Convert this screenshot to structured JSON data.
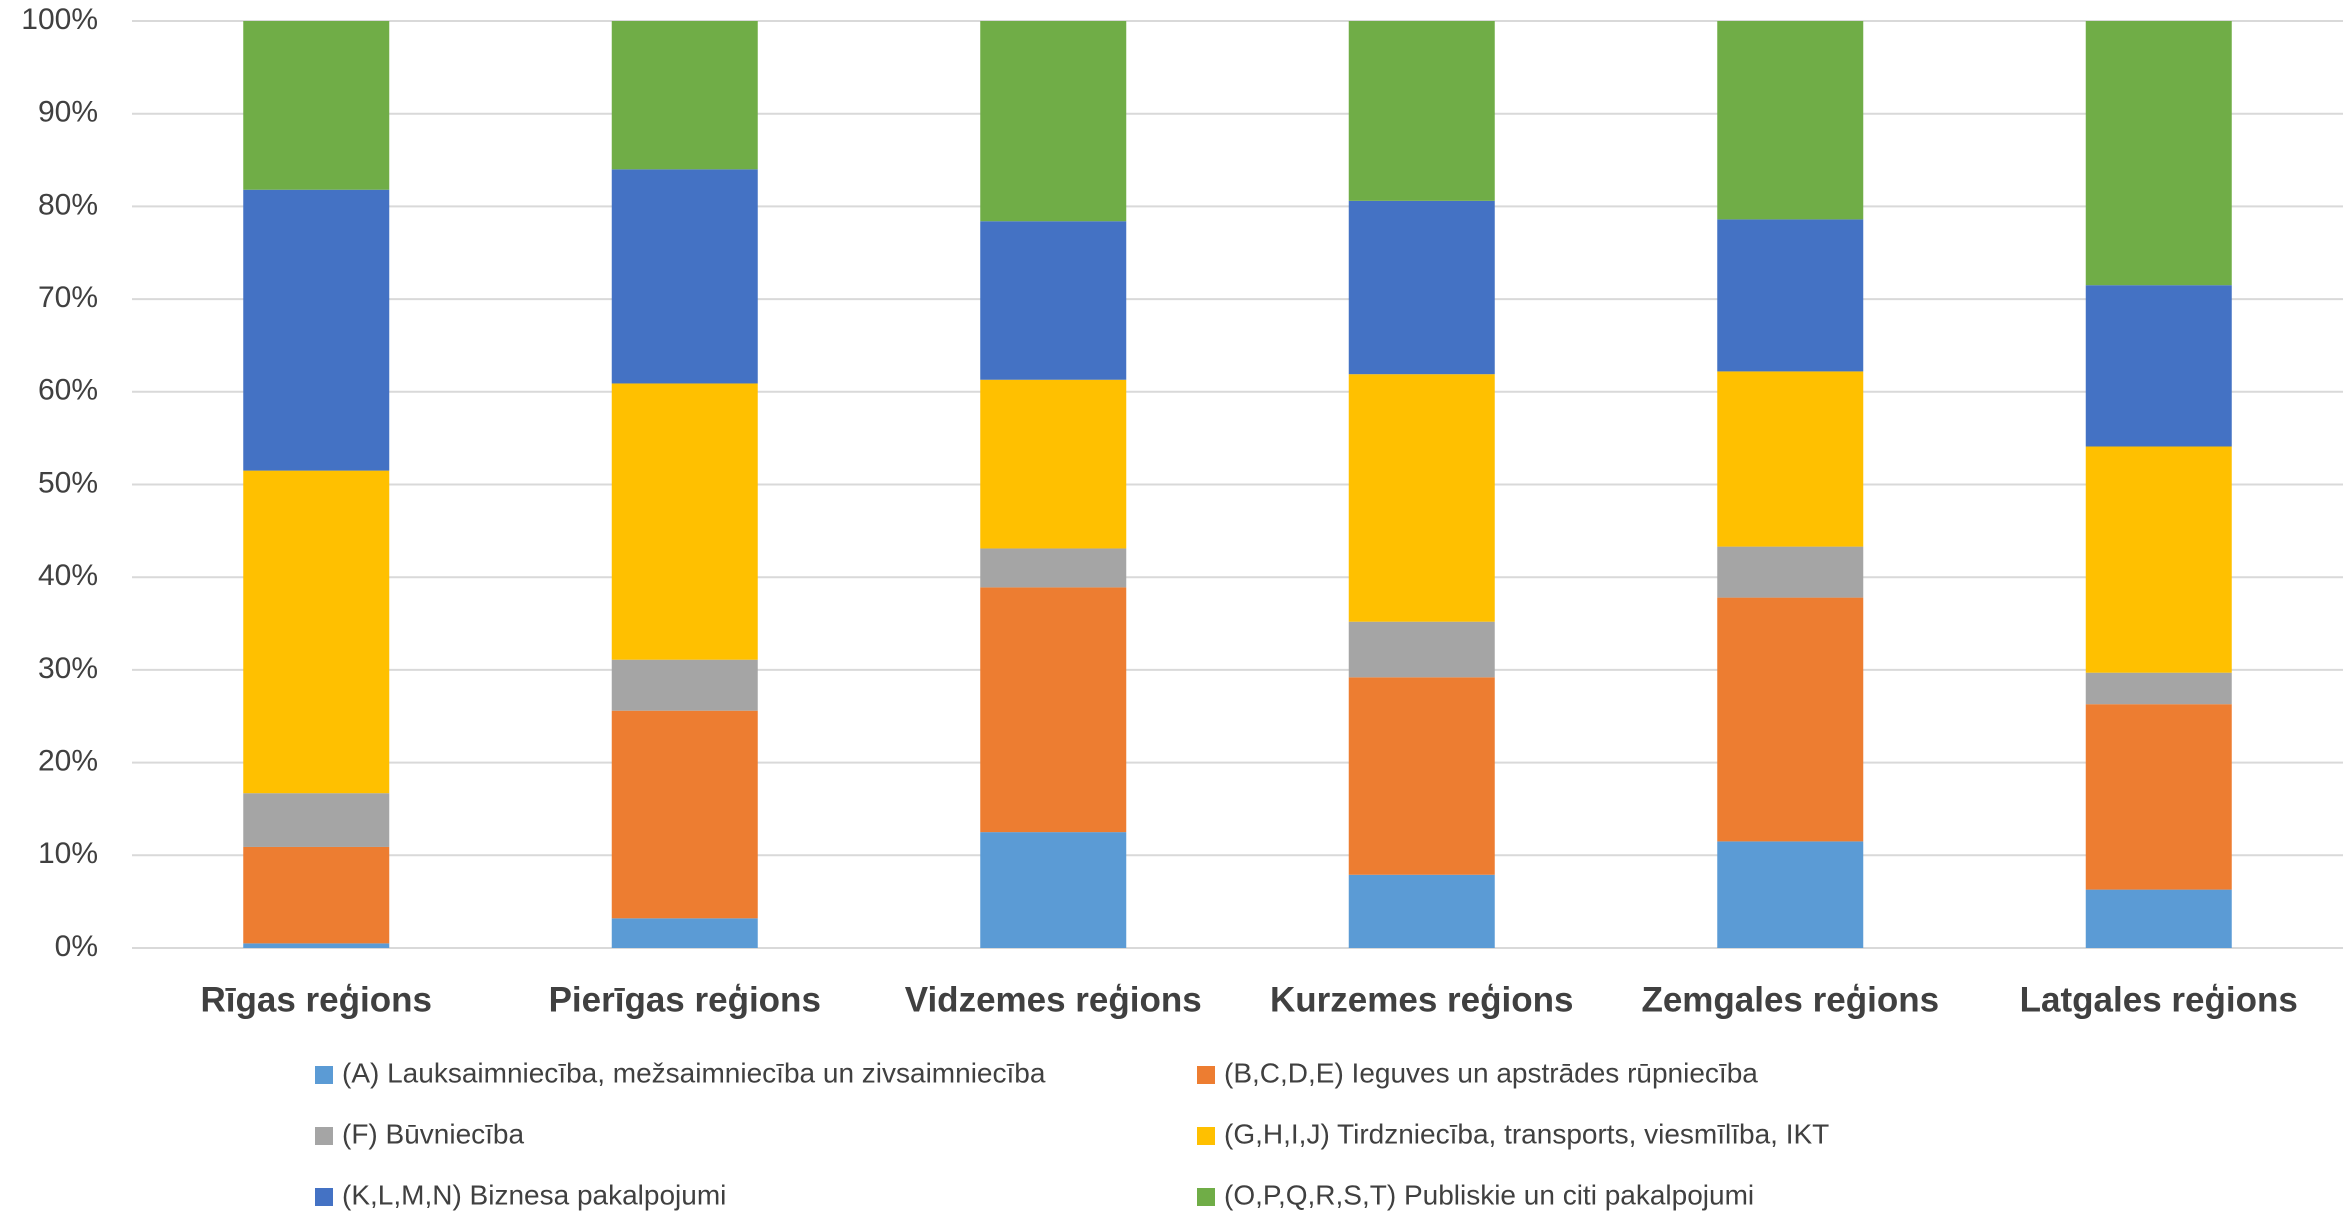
{
  "chart_data": {
    "type": "stacked_bar",
    "categories": [
      "Rīgas reģions",
      "Pierīgas reģions",
      "Vidzemes reģions",
      "Kurzemes reģions",
      "Zemgales reģions",
      "Latgales reģions"
    ],
    "series": [
      {
        "name": "(A) Lauksaimniecība, mežsaimniecība un zivsaimniecība",
        "color": "#5b9bd5",
        "values": [
          0.5,
          3.2,
          12.5,
          7.9,
          11.5,
          6.3
        ]
      },
      {
        "name": "(B,C,D,E) Ieguves un apstrādes rūpniecība",
        "color": "#ed7d31",
        "values": [
          10.4,
          22.4,
          26.4,
          21.3,
          26.3,
          20.0
        ]
      },
      {
        "name": "(F) Būvniecība",
        "color": "#a5a5a5",
        "values": [
          5.8,
          5.5,
          4.2,
          6.0,
          5.5,
          3.4
        ]
      },
      {
        "name": "(G,H,I,J) Tirdzniecība, transports, viesmīlība, IKT",
        "color": "#ffc000",
        "values": [
          34.8,
          29.8,
          18.2,
          26.7,
          18.9,
          24.4
        ]
      },
      {
        "name": "(K,L,M,N)  Biznesa pakalpojumi",
        "color": "#4472c4",
        "values": [
          30.3,
          23.1,
          17.1,
          18.7,
          16.4,
          17.4
        ]
      },
      {
        "name": "(O,P,Q,R,S,T) Publiskie un citi pakalpojumi",
        "color": "#70ad47",
        "values": [
          18.2,
          16.0,
          21.6,
          19.4,
          21.4,
          28.5
        ]
      }
    ],
    "ylim": [
      0,
      100
    ],
    "yticks": [
      {
        "value": 0,
        "label": "0%"
      },
      {
        "value": 10,
        "label": "10%"
      },
      {
        "value": 20,
        "label": "20%"
      },
      {
        "value": 30,
        "label": "30%"
      },
      {
        "value": 40,
        "label": "40%"
      },
      {
        "value": 50,
        "label": "50%"
      },
      {
        "value": 60,
        "label": "60%"
      },
      {
        "value": 70,
        "label": "70%"
      },
      {
        "value": 80,
        "label": "80%"
      },
      {
        "value": 90,
        "label": "90%"
      },
      {
        "value": 100,
        "label": "100%"
      }
    ],
    "grid": true,
    "legend": "bottom"
  }
}
